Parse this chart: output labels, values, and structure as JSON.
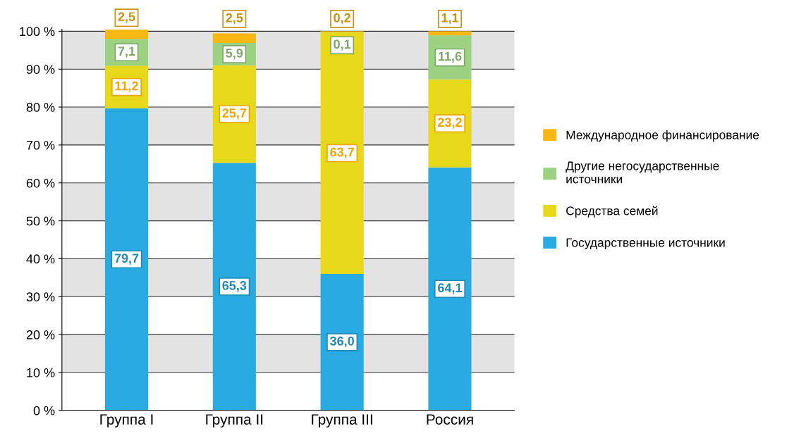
{
  "chart_data": {
    "type": "bar",
    "stacked": true,
    "categories": [
      "Группа I",
      "Группа II",
      "Группа III",
      "Россия"
    ],
    "series": [
      {
        "name": "Государственные источники",
        "color": "#29abe2",
        "values": [
          79.7,
          65.3,
          36.0,
          64.1
        ],
        "value_labels": [
          "79,7",
          "65,3",
          "36,0",
          "64,1"
        ]
      },
      {
        "name": "Средства семей",
        "color": "#e8d81a",
        "values": [
          11.2,
          25.7,
          63.7,
          23.2
        ],
        "value_labels": [
          "11,2",
          "25,7",
          "63,7",
          "23,2"
        ]
      },
      {
        "name": "Другие негосударственные\nисточники",
        "color": "#9ed283",
        "values": [
          7.1,
          5.9,
          0.1,
          11.6
        ],
        "value_labels": [
          "7,1",
          "5,9",
          "0,1",
          "11,6"
        ]
      },
      {
        "name": "Международное финансирование",
        "color": "#fbb714",
        "values": [
          2.5,
          2.5,
          0.2,
          1.1
        ],
        "value_labels": [
          "2,5",
          "2,5",
          "0,2",
          "1,1"
        ]
      }
    ],
    "ylim": [
      0,
      100.5
    ],
    "yticks": [
      {
        "value": 0,
        "label": "0 %"
      },
      {
        "value": 10,
        "label": "10 %"
      },
      {
        "value": 20,
        "label": "20 %"
      },
      {
        "value": 30,
        "label": "30 %"
      },
      {
        "value": 40,
        "label": "40 %"
      },
      {
        "value": 50,
        "label": "50 %"
      },
      {
        "value": 60,
        "label": "60 %"
      },
      {
        "value": 70,
        "label": "70 %"
      },
      {
        "value": 80,
        "label": "80 %"
      },
      {
        "value": 90,
        "label": "90 %"
      },
      {
        "value": 100,
        "label": "100 %"
      }
    ],
    "grid": "y",
    "legend": "right"
  }
}
